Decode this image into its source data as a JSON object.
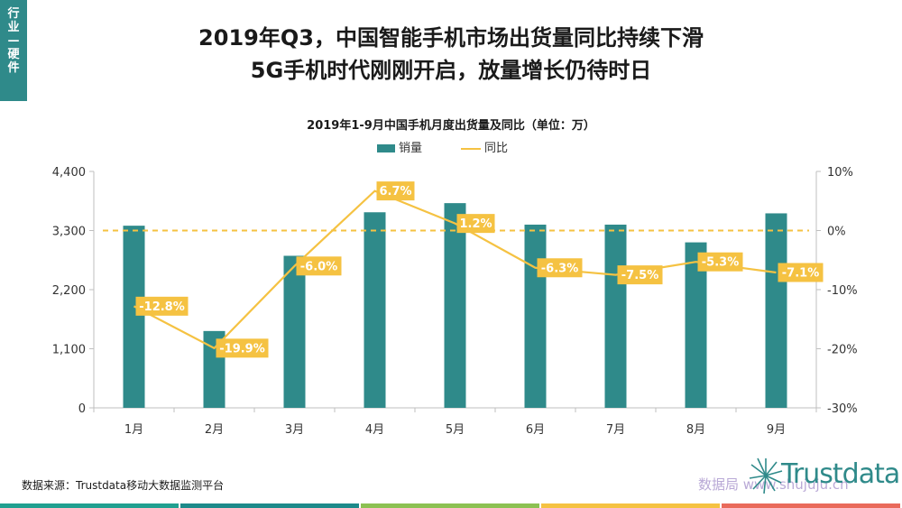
{
  "side_tab": "行业—硬件",
  "title_line1": "2019年Q3，中国智能手机市场出货量同比持续下滑",
  "title_line2": "5G手机时代刚刚开启，放量增长仍待时日",
  "source": "数据来源：Trustdata移动大数据监测平台",
  "logo_text": "Trustdata",
  "watermark": "数据局 www.shujuju.cn",
  "colors": {
    "teal": "#2f8a8a",
    "yellow": "#f5c242",
    "footer": [
      "#20a090",
      "#1d8a8a",
      "#8cc152",
      "#f5c242",
      "#e96a5b"
    ]
  },
  "chart_data": {
    "type": "bar+line",
    "title": "2019年1-9月中国手机月度出货量及同比（单位：万）",
    "categories": [
      "1月",
      "2月",
      "3月",
      "4月",
      "5月",
      "6月",
      "7月",
      "8月",
      "9月"
    ],
    "series": [
      {
        "name": "销量",
        "type": "bar",
        "axis": "left",
        "values": [
          3390,
          1430,
          2830,
          3640,
          3810,
          3410,
          3410,
          3080,
          3620
        ]
      },
      {
        "name": "同比",
        "type": "line",
        "axis": "right",
        "values": [
          -12.8,
          -19.9,
          -6.0,
          6.7,
          1.2,
          -6.3,
          -7.5,
          -5.3,
          -7.1
        ],
        "labels": [
          "-12.8%",
          "-19.9%",
          "-6.0%",
          "6.7%",
          "1.2%",
          "-6.3%",
          "-7.5%",
          "-5.3%",
          "-7.1%"
        ]
      }
    ],
    "y_left": {
      "min": 0,
      "max": 4400,
      "ticks": [
        0,
        1100,
        2200,
        3300,
        4400
      ],
      "tick_labels": [
        "0",
        "1,100",
        "2,200",
        "3,300",
        "4,400"
      ]
    },
    "y_right": {
      "min": -30,
      "max": 10,
      "ticks": [
        -30,
        -20,
        -10,
        0,
        10
      ],
      "tick_labels": [
        "-30%",
        "-20%",
        "-10%",
        "0%",
        "10%"
      ]
    },
    "reference_line": 0,
    "legend": "top"
  }
}
